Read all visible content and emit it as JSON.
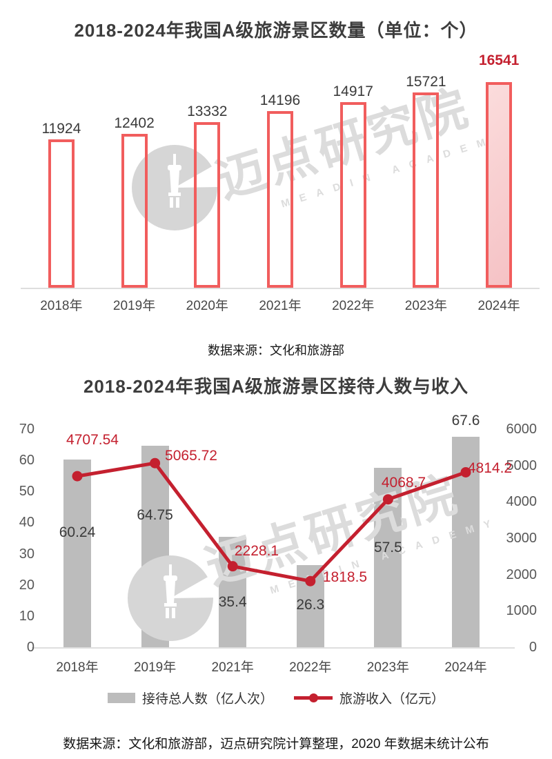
{
  "watermark": {
    "text": "迈点研究院",
    "subtext": "MEADIN ACADEMY"
  },
  "colors": {
    "bar_outline_red": "#f15d5d",
    "highlight_pink": "#f5c2c5",
    "crimson": "#c4202f",
    "bar_gray": "#bcbcbc",
    "watermark_gray": "#dcdcdc",
    "axis_gray": "#dedede"
  },
  "chart_data": [
    {
      "type": "bar",
      "title": "2018-2024年我国A级旅游景区数量（单位：个）",
      "categories": [
        "2018年",
        "2019年",
        "2020年",
        "2021年",
        "2022年",
        "2023年",
        "2024年"
      ],
      "values": [
        11924,
        12402,
        13332,
        14196,
        14917,
        15721,
        16541
      ],
      "highlight_index": 6,
      "bar_style": "hollow red outline, 2024 filled pink",
      "ylim": [
        0,
        17000
      ],
      "grid": "off",
      "source": "数据来源：文化和旅游部"
    },
    {
      "type": "bar+line",
      "title": "2018-2024年我国A级旅游景区接待人数与收入",
      "categories": [
        "2018年",
        "2019年",
        "2021年",
        "2022年",
        "2023年",
        "2024年"
      ],
      "series": [
        {
          "name": "接待总人数（亿人次）",
          "type": "bar",
          "axis": "left",
          "values": [
            60.24,
            64.75,
            35.4,
            26.3,
            57.5,
            67.6
          ]
        },
        {
          "name": "旅游收入（亿元）",
          "type": "line",
          "axis": "right",
          "values": [
            4707.54,
            5065.72,
            2228.1,
            1818.5,
            4068.7,
            4814.2
          ]
        }
      ],
      "left_axis": {
        "min": 0,
        "max": 70,
        "ticks": [
          0,
          10,
          20,
          30,
          40,
          50,
          60,
          70
        ]
      },
      "right_axis": {
        "min": 0,
        "max": 6000,
        "ticks": [
          0,
          1000,
          2000,
          3000,
          4000,
          5000,
          6000
        ]
      },
      "grid": "off",
      "legend_position": "bottom",
      "source": "数据来源：文化和旅游部，迈点研究院计算整理，2020 年数据未统计公布"
    }
  ]
}
